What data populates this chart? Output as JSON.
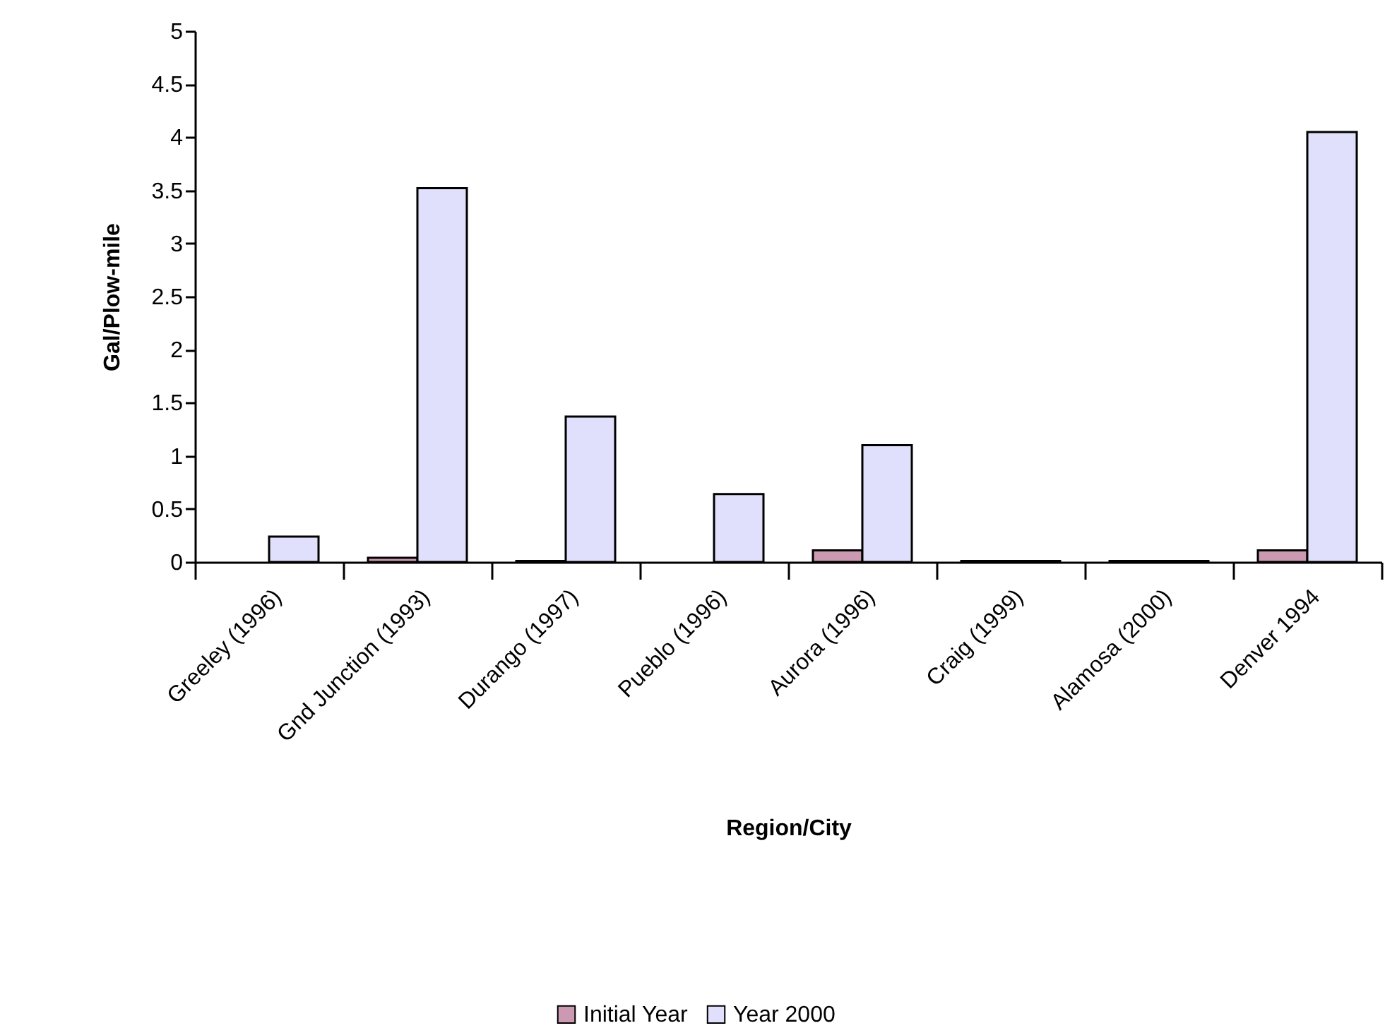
{
  "chart_data": {
    "type": "bar",
    "xlabel": "Region/City",
    "ylabel": "Gal/Plow-mile",
    "categories": [
      "Greeley (1996)",
      "Gnd Junction (1993)",
      "Durango (1997)",
      "Pueblo (1996)",
      "Aurora (1996)",
      "Craig (1999)",
      "Alamosa (2000)",
      "Denver 1994"
    ],
    "series": [
      {
        "name": "Initial Year",
        "color": "#cc99b2",
        "values": [
          null,
          0.04,
          0.01,
          null,
          0.11,
          0.01,
          0.01,
          0.11
        ]
      },
      {
        "name": "Year 2000",
        "color": "#e0e0fc",
        "values": [
          0.24,
          3.52,
          1.37,
          0.64,
          1.1,
          0.01,
          0.01,
          4.05
        ]
      }
    ],
    "ylim": [
      0,
      5
    ],
    "yticks": [
      0,
      0.5,
      1,
      1.5,
      2,
      2.5,
      3,
      3.5,
      4,
      4.5,
      5
    ],
    "grid": false,
    "legend": "bottom"
  }
}
